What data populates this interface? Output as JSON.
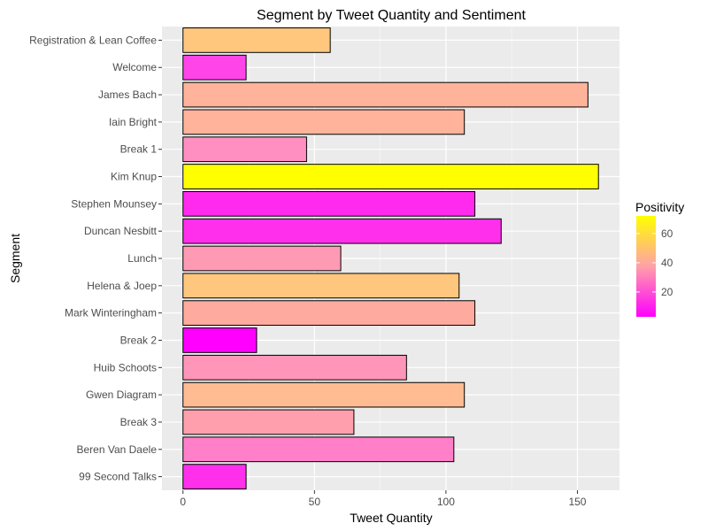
{
  "chart_data": {
    "type": "bar",
    "orientation": "horizontal",
    "title": "Segment by Tweet Quantity and Sentiment",
    "xlabel": "Tweet Quantity",
    "ylabel": "Segment",
    "xlim": [
      -8,
      166
    ],
    "xticks": [
      0,
      50,
      100,
      150
    ],
    "grid": true,
    "categories": [
      "Registration & Lean Coffee",
      "Welcome",
      "James Bach",
      "Iain Bright",
      "Break 1",
      "Kim Knup",
      "Stephen Mounsey",
      "Duncan Nesbitt",
      "Lunch",
      "Helena & Joep",
      "Mark Winteringham",
      "Break 2",
      "Huib Schoots",
      "Gwen Diagram",
      "Break 3",
      "Beren Van Daele",
      "99 Second Talks"
    ],
    "values": [
      56,
      24,
      154,
      107,
      47,
      158,
      111,
      121,
      60,
      105,
      111,
      28,
      85,
      107,
      65,
      103,
      24
    ],
    "positivity": [
      48,
      14,
      40,
      40,
      26,
      72,
      8,
      10,
      28,
      50,
      38,
      3,
      30,
      42,
      32,
      20,
      10
    ],
    "colors": [
      "#FFC67E",
      "#FF44E8",
      "#FFB39B",
      "#FFB39B",
      "#FF8FC0",
      "#FFFF00",
      "#FF2AEE",
      "#FF2FEC",
      "#FF9AB5",
      "#FFC67E",
      "#FFAA9F",
      "#FF00FF",
      "#FF95B8",
      "#FFBB92",
      "#FF9FAD",
      "#FF7FC8",
      "#FF2FEC"
    ],
    "legend": {
      "title": "Positivity",
      "position": "right",
      "range": [
        3,
        72
      ],
      "ticks": [
        20,
        40,
        60
      ],
      "low_color": "#FF00FF",
      "high_color": "#FFFF00"
    }
  }
}
